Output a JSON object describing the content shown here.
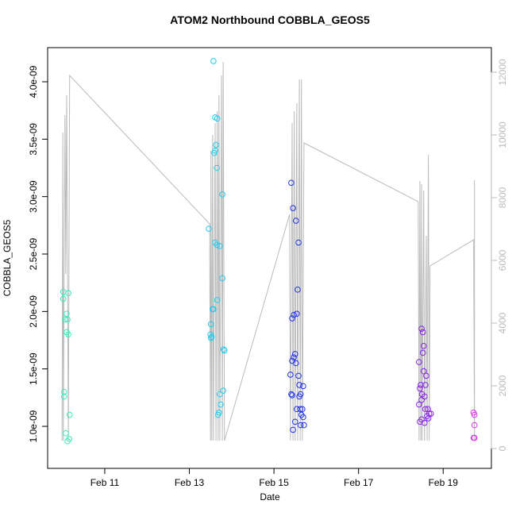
{
  "chart_data": {
    "type": "scatter",
    "title": "ATOM2 Northbound COBBLA_GEOS5",
    "x_label": "Date",
    "y_label": "COBBLA_GEOS5",
    "xlim": [
      9.65,
      20.14
    ],
    "xticks": [
      {
        "value": 11,
        "label": "Feb 11"
      },
      {
        "value": 13,
        "label": "Feb 13"
      },
      {
        "value": 15,
        "label": "Feb 15"
      },
      {
        "value": 17,
        "label": "Feb 17"
      },
      {
        "value": 19,
        "label": "Feb 19"
      }
    ],
    "ylim": [
      6.34e-10,
      4.297e-09
    ],
    "yticks": [
      {
        "value": 1e-09,
        "label": "1.0e-09"
      },
      {
        "value": 1.5e-09,
        "label": "1.5e-09"
      },
      {
        "value": 2e-09,
        "label": "2.0e-09"
      },
      {
        "value": 2.5e-09,
        "label": "2.5e-09"
      },
      {
        "value": 3e-09,
        "label": "3.0e-09"
      },
      {
        "value": 3.5e-09,
        "label": "3.5e-09"
      },
      {
        "value": 4e-09,
        "label": "4.0e-09"
      }
    ],
    "y2lim": [
      -633,
      12785
    ],
    "y2ticks": [
      0,
      2000,
      4000,
      6000,
      8000,
      10000,
      12000
    ],
    "series": [
      {
        "color": "#bbbbbb",
        "style": "line",
        "axis": "y2",
        "x": [
          9.99,
          10.01,
          10.02,
          10.06,
          10.08,
          10.1,
          10.14,
          10.17,
          13.48,
          13.5,
          13.51,
          13.53,
          13.55,
          13.57,
          13.61,
          13.63,
          13.66,
          13.68,
          13.7,
          13.72,
          13.76,
          13.78,
          13.8,
          13.83,
          15.37,
          15.39,
          15.43,
          15.45,
          15.48,
          15.5,
          15.54,
          15.56,
          15.6,
          15.62,
          15.65,
          15.67,
          15.71,
          18.41,
          18.43,
          18.45,
          18.47,
          18.49,
          18.5,
          18.54,
          18.56,
          18.6,
          18.62,
          18.65,
          18.67,
          18.69,
          19.72,
          19.74,
          19.74
        ],
        "values": [
          253,
          10076,
          253,
          10633,
          5570,
          11266,
          253,
          11899,
          7165,
          253,
          9494,
          253,
          10000,
          253,
          10380,
          253,
          10759,
          253,
          11266,
          253,
          11899,
          253,
          12329,
          253,
          7468,
          253,
          10380,
          253,
          10759,
          253,
          11013,
          253,
          11772,
          253,
          11772,
          253,
          9747,
          7873,
          253,
          8532,
          253,
          8430,
          253,
          8228,
          253,
          6785,
          253,
          9367,
          253,
          5823,
          6658,
          253,
          8557
        ]
      },
      {
        "color": "#33eebb",
        "x": [
          10.02,
          10.02,
          10.04,
          10.04,
          10.06,
          10.08,
          10.1,
          10.1,
          10.12,
          10.12,
          10.14,
          10.14,
          10.16,
          10.17
        ],
        "values": [
          2.17e-09,
          2.11e-09,
          1.3e-09,
          1.26e-09,
          1.93e-09,
          9.4e-10,
          1.98e-09,
          1.82e-09,
          1.93e-09,
          8.7e-10,
          2.16e-09,
          1.8e-09,
          8.9e-10,
          1.1e-09
        ]
      },
      {
        "color": "#22ccee",
        "x": [
          13.57,
          13.61,
          13.66,
          13.63,
          13.61,
          13.59,
          13.65,
          13.78,
          13.46,
          13.61,
          13.65,
          13.72,
          13.78,
          13.66,
          13.57,
          13.51,
          13.5,
          13.51,
          13.53,
          13.55,
          13.81,
          13.83,
          13.72,
          13.8,
          13.74,
          13.7,
          13.68
        ],
        "values": [
          4.18e-09,
          3.69e-09,
          3.68e-09,
          3.45e-09,
          3.4e-09,
          3.38e-09,
          3.25e-09,
          3.02e-09,
          2.72e-09,
          2.6e-09,
          2.58e-09,
          2.57e-09,
          2.29e-09,
          2.1e-09,
          2.02e-09,
          1.89e-09,
          1.8e-09,
          1.77e-09,
          1.78e-09,
          2.02e-09,
          1.67e-09,
          1.66e-09,
          1.28e-09,
          1.31e-09,
          1.19e-09,
          1.12e-09,
          1.1e-09
        ]
      },
      {
        "color": "#2233ee",
        "x": [
          15.41,
          15.45,
          15.52,
          15.58,
          15.56,
          15.54,
          15.47,
          15.43,
          15.5,
          15.47,
          15.43,
          15.52,
          15.39,
          15.58,
          15.6,
          15.69,
          15.41,
          15.43,
          15.63,
          15.6,
          15.54,
          15.62,
          15.67,
          15.65,
          15.69,
          15.5,
          15.63,
          15.71,
          15.45
        ],
        "values": [
          3.12e-09,
          2.9e-09,
          2.79e-09,
          2.6e-09,
          2.19e-09,
          1.98e-09,
          1.97e-09,
          1.94e-09,
          1.63e-09,
          1.6e-09,
          1.57e-09,
          1.55e-09,
          1.45e-09,
          1.44e-09,
          1.36e-09,
          1.35e-09,
          1.28e-09,
          1.27e-09,
          1.28e-09,
          1.26e-09,
          1.15e-09,
          1.15e-09,
          1.15e-09,
          1.1e-09,
          1.08e-09,
          1.04e-09,
          1.01e-09,
          1.01e-09,
          9.7e-10
        ]
      },
      {
        "color": "#8822ee",
        "x": [
          18.49,
          18.52,
          18.43,
          18.54,
          18.52,
          18.54,
          18.47,
          18.6,
          18.45,
          18.58,
          18.5,
          18.56,
          18.43,
          18.49,
          18.58,
          18.64,
          18.67,
          18.62,
          18.71,
          18.65,
          18.49,
          18.45,
          18.56
        ],
        "values": [
          1.85e-09,
          1.82e-09,
          1.56e-09,
          1.7e-09,
          1.64e-09,
          1.48e-09,
          1.36e-09,
          1.44e-09,
          1.33e-09,
          1.36e-09,
          1.28e-09,
          1.26e-09,
          1.19e-09,
          1.23e-09,
          1.15e-09,
          1.15e-09,
          1.11e-09,
          1.09e-09,
          1.11e-09,
          1.07e-09,
          1.06e-09,
          1.04e-09,
          1.03e-09
        ]
      },
      {
        "color": "#dd33ee",
        "x": [
          19.72,
          19.74,
          19.74,
          19.72,
          19.74
        ],
        "values": [
          1.12e-09,
          1.1e-09,
          1.01e-09,
          9e-10,
          9e-10
        ]
      }
    ]
  }
}
